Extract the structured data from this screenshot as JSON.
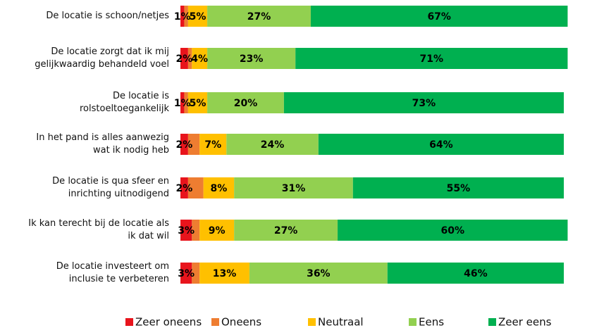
{
  "chart_data": {
    "type": "stacked-bar-horizontal",
    "categories": [
      "De locatie is schoon/netjes",
      "De locatie zorgt dat ik mij\ngelijkwaardig behandeld voel",
      "De locatie is\nrolstoeltoegankelijk",
      "In het pand is alles aanwezig\nwat ik nodig heb",
      "De locatie is qua sfeer en\ninrichting uitnodigend",
      "Ik kan terecht bij de locatie als\nik dat wil",
      "De locatie investeert om\ninclusie te verbeteren"
    ],
    "series": [
      {
        "name": "Zeer oneens",
        "color": "#e8141c",
        "values": [
          1,
          2,
          1,
          2,
          2,
          3,
          3
        ],
        "value_labels": [
          "1%",
          "2%",
          "1%",
          "2%",
          "2%",
          "3%",
          "3%"
        ]
      },
      {
        "name": "Oneens",
        "color": "#ee7d31",
        "values": [
          1,
          1,
          1,
          3,
          4,
          2,
          2
        ]
      },
      {
        "name": "Neutraal",
        "color": "#ffc000",
        "values": [
          5,
          4,
          5,
          7,
          8,
          9,
          13
        ],
        "value_labels": [
          "5%",
          "4%",
          "5%",
          "7%",
          "8%",
          "9%",
          "13%"
        ]
      },
      {
        "name": "Eens",
        "color": "#92d050",
        "values": [
          27,
          23,
          20,
          24,
          31,
          27,
          36
        ],
        "value_labels": [
          "27%",
          "23%",
          "20%",
          "24%",
          "31%",
          "27%",
          "36%"
        ]
      },
      {
        "name": "Zeer eens",
        "color": "#00b050",
        "values": [
          67,
          71,
          73,
          64,
          55,
          60,
          46
        ],
        "value_labels": [
          "67%",
          "71%",
          "73%",
          "64%",
          "55%",
          "60%",
          "46%"
        ]
      }
    ],
    "xlim": [
      0,
      100
    ],
    "legend": "bottom"
  }
}
